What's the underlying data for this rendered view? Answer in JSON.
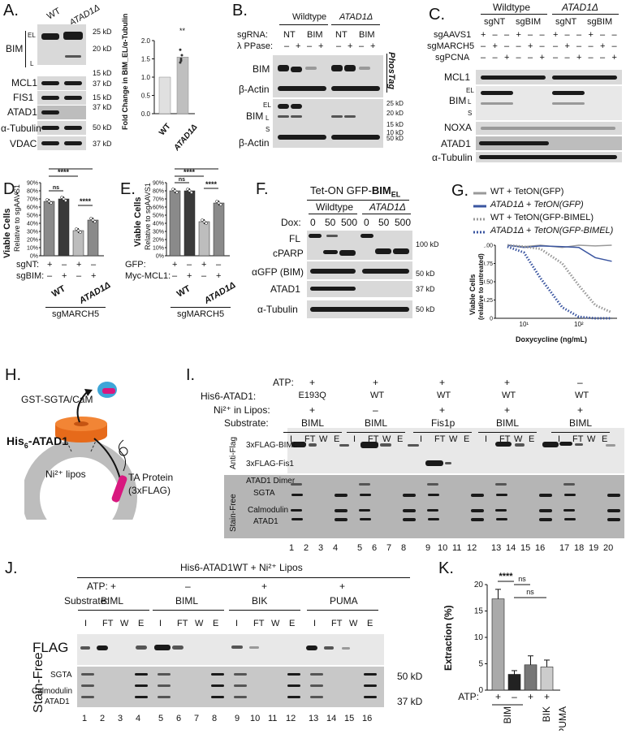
{
  "panel_letters": {
    "A": "A.",
    "B": "B.",
    "C": "C.",
    "D": "D.",
    "E": "E.",
    "F": "F.",
    "G": "G.",
    "H": "H.",
    "I": "I.",
    "J": "J.",
    "K": "K."
  },
  "colors": {
    "wt": "#999999",
    "atad1": "#3a55a0",
    "bar_dark": "#555555",
    "bar_light": "#bfbfbf"
  },
  "panelA": {
    "lanes": [
      "WT",
      "ATAD1Δ"
    ],
    "rows": [
      "BIM",
      "MCL1",
      "FIS1",
      "ATAD1",
      "α-Tubulin",
      "VDAC"
    ],
    "isoforms": [
      "EL",
      "L"
    ],
    "markers": [
      "25 kD",
      "20 kD",
      "15 kD",
      "37 kD",
      "15 kD",
      "37 kD",
      "50 kD",
      "37 kD"
    ],
    "chart_data": {
      "type": "bar",
      "categories": [
        "WT",
        "ATAD1Δ"
      ],
      "values": [
        1.0,
        1.55
      ],
      "ylabel": "Fold Change in BIM_EL/α-Tubulin",
      "ylim": [
        0,
        2.0
      ],
      "yticks": [
        "0.0",
        "0.5",
        "1.0",
        "1.5",
        "2.0"
      ],
      "significance": "**"
    }
  },
  "panelB": {
    "group_labels": [
      "Wildtype",
      "ATAD1Δ"
    ],
    "sgRNA_label": "sgRNA:",
    "sgRNA": [
      "NT",
      "BIM",
      "NT",
      "BIM"
    ],
    "ppase_label": "λ PPase:",
    "ppase": [
      "–",
      "+",
      "–",
      "+",
      "–",
      "+",
      "–",
      "+"
    ],
    "phostag": "PhosTag",
    "rows": [
      "BIM",
      "β-Actin",
      "BIM",
      "β-Actin"
    ],
    "isoforms": [
      "EL",
      "L",
      "S"
    ],
    "markers": [
      "25 kD",
      "20 kD",
      "15 kD",
      "10 kD",
      "50 kD"
    ]
  },
  "panelC": {
    "group_labels": [
      "Wildtype",
      "ATAD1Δ"
    ],
    "sub_labels": [
      "sgNT",
      "sgBIM",
      "sgNT",
      "sgBIM"
    ],
    "conditions": [
      {
        "name": "sgAAVS1",
        "values": [
          "+",
          "–",
          "–",
          "+",
          "–",
          "–",
          "+",
          "–",
          "–",
          "+",
          "–",
          "–"
        ]
      },
      {
        "name": "sgMARCH5",
        "values": [
          "–",
          "+",
          "–",
          "–",
          "+",
          "–",
          "–",
          "+",
          "–",
          "–",
          "+",
          "–"
        ]
      },
      {
        "name": "sgPCNA",
        "values": [
          "–",
          "–",
          "+",
          "–",
          "–",
          "+",
          "–",
          "–",
          "+",
          "–",
          "–",
          "+"
        ]
      }
    ],
    "rows": [
      "MCL1",
      "BIM",
      "NOXA",
      "ATAD1",
      "α-Tubulin"
    ],
    "isoforms": [
      "EL",
      "L",
      "S"
    ]
  },
  "panelD": {
    "chart_data": {
      "type": "bar",
      "ylabel": "Viable Cells",
      "ylabel2": "Relative to sgAAVS1",
      "yticks": [
        "0%",
        "10%",
        "20%",
        "30%",
        "40%",
        "50%",
        "60%",
        "70%",
        "80%",
        "90%"
      ],
      "ylim": [
        0,
        90
      ],
      "values": [
        67,
        70,
        31,
        44
      ],
      "rows": [
        {
          "label": "sgNT:",
          "values": [
            "+",
            "–",
            "+",
            "–"
          ]
        },
        {
          "label": "sgBIM:",
          "values": [
            "–",
            "+",
            "–",
            "+"
          ]
        }
      ],
      "groups": [
        "WT",
        "ATAD1Δ"
      ],
      "footer": "sgMARCH5",
      "significance": [
        "ns",
        "****",
        "****",
        "****"
      ]
    }
  },
  "panelE": {
    "chart_data": {
      "type": "bar",
      "ylabel": "Viable Cells",
      "ylabel2": "Relative to sgAAVS1",
      "yticks": [
        "0%",
        "10%",
        "20%",
        "30%",
        "40%",
        "50%",
        "60%",
        "70%",
        "80%",
        "90%"
      ],
      "ylim": [
        0,
        90
      ],
      "values": [
        80,
        80,
        42,
        65
      ],
      "rows": [
        {
          "label": "GFP:",
          "values": [
            "+",
            "–",
            "+",
            "–"
          ]
        },
        {
          "label": "Myc-MCL1:",
          "values": [
            "–",
            "+",
            "–",
            "+"
          ]
        }
      ],
      "groups": [
        "WT",
        "ATAD1Δ"
      ],
      "footer": "sgMARCH5",
      "significance": [
        "ns",
        "****",
        "****",
        "****"
      ]
    }
  },
  "panelF": {
    "title_pre": "Tet-ON GFP-",
    "title_bold": "BIM",
    "title_sub": "EL",
    "group_labels": [
      "Wildtype",
      "ATAD1Δ"
    ],
    "dox_label": "Dox:",
    "dox": [
      "0",
      "50",
      "500",
      "0",
      "50",
      "500"
    ],
    "rows": [
      "FL",
      "cPARP",
      "αGFP (BIM)",
      "ATAD1",
      "α-Tubulin"
    ],
    "markers": [
      "100 kD",
      "50 kD",
      "37 kD",
      "50 kD"
    ]
  },
  "panelG": {
    "chart_data": {
      "type": "line",
      "xlabel": "Doxycycline (ng/mL)",
      "ylabel": "Viable Cells",
      "ylabel2": "(relative to untreated)",
      "xscale": "log",
      "yticks": [
        "0",
        "0.25",
        "0.50",
        "0.75",
        "1.00"
      ],
      "xticks": [
        "10¹",
        "10²"
      ],
      "series": [
        {
          "name": "WT + TetON(GFP)",
          "color": "#999999",
          "dotted": false,
          "x": [
            5,
            10,
            20,
            50,
            100,
            200,
            400
          ],
          "y": [
            1.0,
            0.98,
            1.0,
            0.97,
            1.0,
            0.99,
            1.0
          ]
        },
        {
          "name": "ATAD1Δ + TetON(GFP)",
          "color": "#3a55a0",
          "dotted": false,
          "x": [
            5,
            10,
            20,
            50,
            100,
            200,
            400
          ],
          "y": [
            1.0,
            0.97,
            0.99,
            0.98,
            0.97,
            0.83,
            0.78
          ]
        },
        {
          "name": "WT + TetON(GFP-BIMEL)",
          "color": "#999999",
          "dotted": true,
          "x": [
            5,
            10,
            20,
            50,
            100,
            200,
            400
          ],
          "y": [
            1.0,
            0.98,
            0.95,
            0.75,
            0.45,
            0.18,
            0.08
          ]
        },
        {
          "name": "ATAD1Δ + TetON(GFP-BIMEL)",
          "color": "#3a55a0",
          "dotted": true,
          "x": [
            5,
            10,
            20,
            50,
            100,
            200,
            400
          ],
          "y": [
            0.98,
            0.9,
            0.55,
            0.15,
            0.02,
            0.0,
            0.0
          ]
        }
      ]
    }
  },
  "panelH": {
    "gst": "GST-SGTA/CaM",
    "his": "His",
    "his_sub": "6",
    "his_rest": "-ATAD1",
    "lipos": "Ni²⁺ lipos",
    "ta": "TA Protein",
    "ta2": "(3xFLAG)"
  },
  "panelI": {
    "row_labels": [
      "ATP:",
      "His6-ATAD1:",
      "Ni²⁺ in Lipos:",
      "Substrate:"
    ],
    "columns": [
      {
        "atp": "+",
        "atad1": "E193Q",
        "ni": "+",
        "sub": "BIML"
      },
      {
        "atp": "+",
        "atad1": "WT",
        "ni": "–",
        "sub": "BIML"
      },
      {
        "atp": "+",
        "atad1": "WT",
        "ni": "+",
        "sub": "Fis1p"
      },
      {
        "atp": "+",
        "atad1": "WT",
        "ni": "+",
        "sub": "BIML"
      },
      {
        "atp": "–",
        "atad1": "WT",
        "ni": "+",
        "sub": "BIML"
      }
    ],
    "fractions": [
      "I",
      "FT",
      "W",
      "E"
    ],
    "side_labels": [
      "Anti-Flag",
      "Stain-Free"
    ],
    "band_labels": [
      "3xFLAG-BIML",
      "3xFLAG-Fis1",
      "ATAD1 Dimer",
      "SGTA",
      "Calmodulin",
      "ATAD1"
    ],
    "lanes": [
      "1",
      "2",
      "3",
      "4",
      "5",
      "6",
      "7",
      "8",
      "9",
      "10",
      "11",
      "12",
      "13",
      "14",
      "15",
      "16",
      "17",
      "18",
      "19",
      "20"
    ]
  },
  "panelJ": {
    "title": "His6-ATAD1WT + Ni²⁺ Lipos",
    "atp_label": "ATP:",
    "atp": [
      "+",
      "–",
      "+",
      "+"
    ],
    "sub_label": "Substrate:",
    "subs": [
      "BIML",
      "BIML",
      "BIK",
      "PUMA"
    ],
    "fractions": [
      "I",
      "FT",
      "W",
      "E"
    ],
    "side_labels": [
      "FLAG",
      "Stain-Free"
    ],
    "band_labels": [
      "SGTA",
      "Calmodulin",
      "ATAD1"
    ],
    "markers": [
      "50 kD",
      "37 kD"
    ],
    "lanes": [
      "1",
      "2",
      "3",
      "4",
      "5",
      "6",
      "7",
      "8",
      "9",
      "10",
      "11",
      "12",
      "13",
      "14",
      "15",
      "16"
    ]
  },
  "panelK": {
    "chart_data": {
      "type": "bar",
      "categories": [
        "BIM",
        "BIM",
        "BIK",
        "PUMA"
      ],
      "atp": [
        "+",
        "–",
        "+",
        "+"
      ],
      "values": [
        17.3,
        3.0,
        4.8,
        4.4
      ],
      "errors": [
        1.8,
        0.7,
        1.7,
        1.3
      ],
      "ylabel": "Extraction (%)",
      "ylim": [
        0,
        20
      ],
      "yticks": [
        "0",
        "5",
        "10",
        "15",
        "20"
      ],
      "significance": [
        "****",
        "ns",
        "ns"
      ],
      "atp_label": "ATP:"
    }
  }
}
